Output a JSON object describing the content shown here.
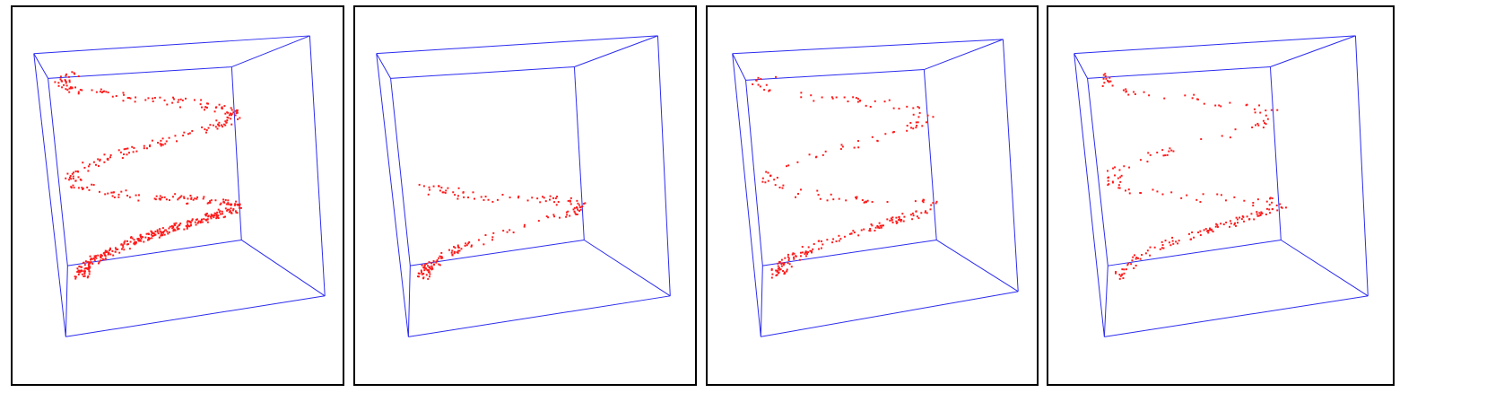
{
  "colors": {
    "box": "#2b2bf0",
    "points": "#ff1a1a",
    "frame": "#000000",
    "background": "#ffffff"
  },
  "chart_data": [
    {
      "type": "scatter",
      "panel": "left",
      "title": "",
      "xlabel": "",
      "ylabel": "",
      "x_range": [
        0,
        1
      ],
      "y_range": [
        0,
        1
      ],
      "z_range": [
        0,
        1
      ],
      "grid": false,
      "shape": "helix (dense)",
      "count": 600,
      "x": [],
      "y": [],
      "z": []
    },
    {
      "type": "scatter",
      "panel": "second",
      "title": "",
      "xlabel": "",
      "ylabel": "",
      "x_range": [
        0,
        1
      ],
      "y_range": [
        0,
        1
      ],
      "z_range": [
        0,
        1
      ],
      "grid": false,
      "shape": "helix (partial, lower half)",
      "count": 180,
      "x": [],
      "y": [],
      "z": []
    },
    {
      "type": "scatter",
      "panel": "third",
      "title": "",
      "xlabel": "",
      "ylabel": "",
      "x_range": [
        0,
        1
      ],
      "y_range": [
        0,
        1
      ],
      "z_range": [
        0,
        1
      ],
      "grid": false,
      "shape": "helix (sparse)",
      "count": 260,
      "x": [],
      "y": [],
      "z": []
    },
    {
      "type": "scatter",
      "panel": "right",
      "title": "",
      "xlabel": "",
      "ylabel": "",
      "x_range": [
        0,
        1
      ],
      "y_range": [
        0,
        1
      ],
      "z_range": [
        0,
        1
      ],
      "grid": false,
      "shape": "helix (sparse)",
      "count": 230,
      "x": [],
      "y": [],
      "z": []
    }
  ]
}
